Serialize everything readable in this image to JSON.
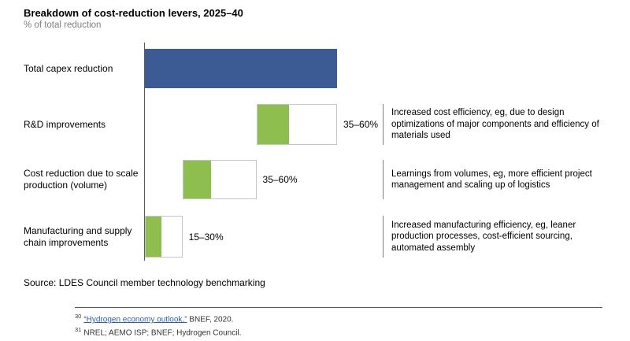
{
  "header": {
    "title": "Breakdown of cost-reduction levers, 2025–40",
    "subtitle": "% of total reduction"
  },
  "chart_data": {
    "type": "bar",
    "variant": "horizontal-waterfall-with-ranges",
    "title": "Breakdown of cost-reduction levers, 2025–40",
    "xlabel": "",
    "ylabel": "% of total reduction",
    "xlim": [
      0,
      100
    ],
    "grid": false,
    "colors": {
      "total": "#3c5a93",
      "lever": "#8ebe4e",
      "outline": "#c6c6c6",
      "axis": "#595959"
    },
    "rows": [
      {
        "label": "Total capex reduction",
        "style": "solid",
        "bar_start": 0,
        "bar_end": 100
      },
      {
        "label": "R&D improvements",
        "style": "range",
        "bar_start": 58,
        "bar_end": 100,
        "solid_start": 58,
        "solid_end": 75,
        "range_label": "35–60%",
        "annotation": "Increased cost efficiency, eg, due to design optimizations of major components and efficiency of materials used"
      },
      {
        "label": "Cost reduction due to scale production (volume)",
        "style": "range",
        "bar_start": 19.5,
        "bar_end": 58,
        "solid_start": 19.5,
        "solid_end": 34.5,
        "range_label": "35–60%",
        "annotation": "Learnings from volumes, eg, more efficient project management and scaling up of logistics"
      },
      {
        "label": "Manufacturing and supply chain improvements",
        "style": "range",
        "bar_start": 0,
        "bar_end": 19.5,
        "solid_start": 0,
        "solid_end": 8.5,
        "range_label": "15–30%",
        "annotation": "Increased manufacturing efficiency, eg, leaner production processes, cost-efficient sourcing, automated assembly"
      }
    ]
  },
  "source": "Source: LDES Council member technology benchmarking",
  "footnotes": [
    {
      "marker": "30",
      "link_text": "“Hydrogen economy outlook,”",
      "rest": " BNEF, 2020."
    },
    {
      "marker": "31",
      "link_text": "",
      "rest": "NREL; AEMO ISP; BNEF; Hydrogen Council."
    }
  ]
}
